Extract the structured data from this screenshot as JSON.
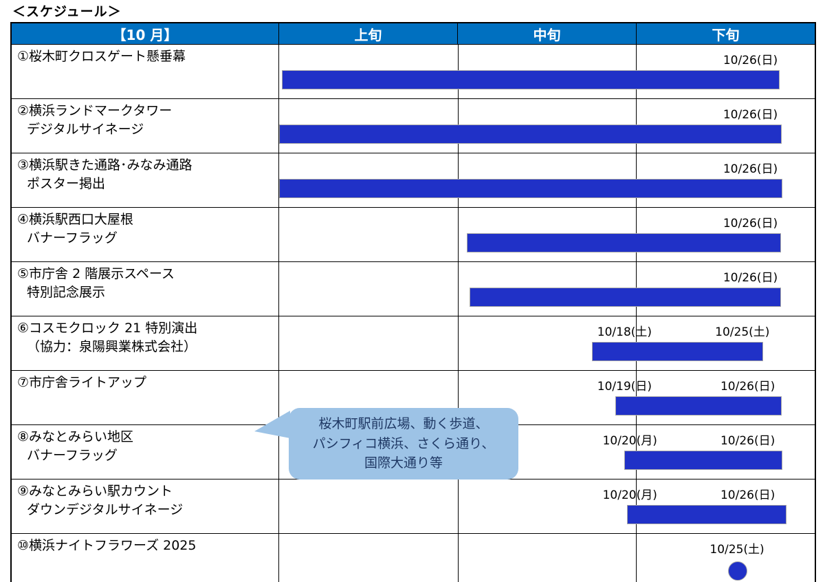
{
  "title": "＜スケジュール＞",
  "colors": {
    "header_bg": "#0070C0",
    "header_text": "#FFFFFF",
    "bar": "#2031C7",
    "bar_border": "#A6A6A6",
    "grid_border": "#000000",
    "callout_bg": "#9DC3E6",
    "callout_text": "#1F3864"
  },
  "header": {
    "month": "【10 月】",
    "periods": [
      "上旬",
      "中旬",
      "下旬"
    ]
  },
  "callout": {
    "lines": [
      "桜木町駅前広場、動く歩道、",
      "パシフィコ横浜、さくら通り、",
      "国際大通り等"
    ]
  },
  "chart_data": {
    "type": "bar",
    "subtype": "gantt-schedule",
    "title": "＜スケジュール＞",
    "month": "【10 月】",
    "x_axis_ticks": [
      "上旬",
      "中旬",
      "下旬"
    ],
    "categories": [
      "①桜木町クロスゲート懸垂幕",
      "②横浜ランドマークタワー デジタルサイネージ",
      "③横浜駅きた通路･みなみ通路 ポスター掲出",
      "④横浜駅西口大屋根 バナーフラッグ",
      "⑤市庁舎 2 階展示スペース 特別記念展示",
      "⑥コスモクロック 21 特別演出（協力：泉陽興業株式会社）",
      "⑦市庁舎ライトアップ",
      "⑧みなとみらい地区 バナーフラッグ",
      "⑨みなとみらい駅カウントダウンデジタルサイネージ",
      "⑩横浜ナイトフラワーズ 2025"
    ],
    "tasks": [
      {
        "label_lines": [
          "①桜木町クロスゲート懸垂幕"
        ],
        "dates": [
          {
            "text": "10/26(日)",
            "center_pct": 88
          }
        ],
        "bar": {
          "left_pct": 0.5,
          "width_pct": 93
        }
      },
      {
        "label_lines": [
          "②横浜ランドマークタワー",
          "デジタルサイネージ"
        ],
        "dates": [
          {
            "text": "10/26(日)",
            "center_pct": 88
          }
        ],
        "bar": {
          "left_pct": 0,
          "width_pct": 93.8
        }
      },
      {
        "label_lines": [
          "③横浜駅きた通路･みなみ通路",
          "ポスター掲出"
        ],
        "dates": [
          {
            "text": "10/26(日)",
            "center_pct": 88
          }
        ],
        "bar": {
          "left_pct": 0,
          "width_pct": 94
        }
      },
      {
        "label_lines": [
          "④横浜駅西口大屋根",
          "バナーフラッグ"
        ],
        "dates": [
          {
            "text": "10/26(日)",
            "center_pct": 88
          }
        ],
        "bar": {
          "left_pct": 35,
          "width_pct": 58.7
        }
      },
      {
        "label_lines": [
          "⑤市庁舎 2 階展示スペース",
          "特別記念展示"
        ],
        "dates": [
          {
            "text": "10/26(日)",
            "center_pct": 88
          }
        ],
        "bar": {
          "left_pct": 35.5,
          "width_pct": 58.2
        }
      },
      {
        "label_lines": [
          "⑥コスモクロック 21 特別演出",
          "（協力：泉陽興業株式会社）"
        ],
        "dates": [
          {
            "text": "10/18(土)",
            "center_pct": 64.5
          },
          {
            "text": "10/25(土)",
            "center_pct": 86.5
          }
        ],
        "bar": {
          "left_pct": 58.4,
          "width_pct": 32
        }
      },
      {
        "label_lines": [
          "⑦市庁舎ライトアップ"
        ],
        "dates": [
          {
            "text": "10/19(日)",
            "center_pct": 64.5
          },
          {
            "text": "10/26(日)",
            "center_pct": 87.5
          }
        ],
        "bar": {
          "left_pct": 62.8,
          "width_pct": 31
        }
      },
      {
        "label_lines": [
          "⑧みなとみらい地区",
          "バナーフラッグ"
        ],
        "dates": [
          {
            "text": "10/20(月)",
            "center_pct": 65.5
          },
          {
            "text": "10/26(日)",
            "center_pct": 87.5
          }
        ],
        "bar": {
          "left_pct": 64.5,
          "width_pct": 29.5
        }
      },
      {
        "label_lines": [
          "⑨みなとみらい駅カウント",
          "ダウンデジタルサイネージ"
        ],
        "dates": [
          {
            "text": "10/20(月)",
            "center_pct": 65.5
          },
          {
            "text": "10/26(日)",
            "center_pct": 87.5
          }
        ],
        "bar": {
          "left_pct": 65,
          "width_pct": 29.8
        }
      },
      {
        "label_lines": [
          "⑩横浜ナイトフラワーズ 2025"
        ],
        "dates": [
          {
            "text": "10/25(土)",
            "center_pct": 85.5
          }
        ],
        "dot": {
          "center_pct": 85.6
        }
      }
    ]
  }
}
